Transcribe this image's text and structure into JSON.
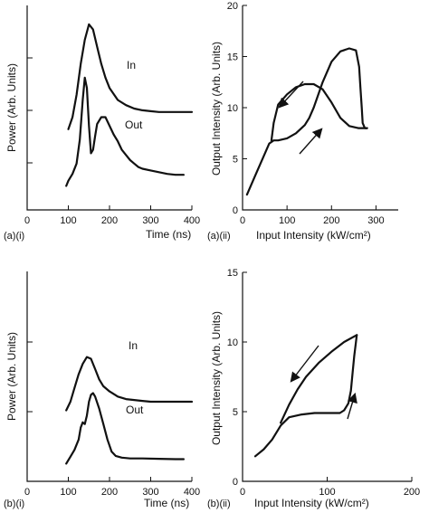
{
  "chart_data": [
    {
      "id": "a_i",
      "type": "line",
      "panel_label": "(a)(i)",
      "xlabel": "Time (ns)",
      "ylabel": "Power (Arb. Units)",
      "xlim": [
        0,
        400
      ],
      "xticks": [
        0,
        100,
        200,
        300,
        400
      ],
      "y_tick_marks": 3,
      "series": [
        {
          "name": "In",
          "x": [
            100,
            110,
            120,
            130,
            140,
            150,
            160,
            170,
            180,
            190,
            200,
            220,
            240,
            260,
            280,
            300,
            320,
            340,
            360,
            380,
            400
          ],
          "values": [
            0.38,
            0.45,
            0.58,
            0.76,
            0.9,
            0.99,
            0.96,
            0.86,
            0.76,
            0.68,
            0.62,
            0.55,
            0.52,
            0.5,
            0.49,
            0.485,
            0.48,
            0.48,
            0.48,
            0.48,
            0.48
          ]
        },
        {
          "name": "Out",
          "x": [
            95,
            100,
            110,
            120,
            128,
            135,
            140,
            145,
            150,
            155,
            160,
            165,
            170,
            180,
            190,
            200,
            210,
            220,
            230,
            240,
            250,
            260,
            270,
            280,
            300,
            320,
            340,
            360,
            380
          ],
          "values": [
            0.05,
            0.08,
            0.12,
            0.18,
            0.32,
            0.55,
            0.68,
            0.62,
            0.4,
            0.24,
            0.26,
            0.34,
            0.41,
            0.45,
            0.45,
            0.4,
            0.35,
            0.31,
            0.26,
            0.23,
            0.2,
            0.18,
            0.16,
            0.15,
            0.14,
            0.13,
            0.12,
            0.115,
            0.115
          ]
        }
      ]
    },
    {
      "id": "a_ii",
      "type": "line",
      "panel_label": "(a)(ii)",
      "xlabel": "Input Intensity (kW/cm²)",
      "ylabel": "Output Intensity (Arb. Units)",
      "xlim": [
        0,
        350
      ],
      "ylim": [
        0,
        20
      ],
      "xticks": [
        0,
        100,
        200,
        300
      ],
      "yticks": [
        0,
        5,
        10,
        15,
        20
      ],
      "series": [
        {
          "name": "",
          "x": [
            10,
            30,
            50,
            60,
            70,
            80,
            100,
            120,
            140,
            150,
            160,
            180,
            200,
            220,
            240,
            255,
            262,
            265,
            268,
            270,
            275,
            280
          ],
          "values": [
            1.5,
            3.5,
            5.5,
            6.5,
            6.8,
            6.8,
            7.0,
            7.5,
            8.3,
            9.0,
            10.0,
            12.5,
            14.5,
            15.5,
            15.8,
            15.6,
            14.0,
            12.0,
            10.0,
            8.5,
            8.0,
            8.0
          ]
        },
        {
          "name": "",
          "x": [
            280,
            260,
            240,
            220,
            200,
            180,
            160,
            140,
            120,
            100,
            80,
            70,
            65
          ],
          "values": [
            8.0,
            8.0,
            8.2,
            9.0,
            10.5,
            11.8,
            12.3,
            12.3,
            12.0,
            11.3,
            10.3,
            8.5,
            6.8
          ]
        }
      ],
      "arrows": [
        "upper path leftward",
        "lower path rightward"
      ]
    },
    {
      "id": "b_i",
      "type": "line",
      "panel_label": "(b)(i)",
      "xlabel": "Time (ns)",
      "ylabel": "Power (Arb. Units)",
      "xlim": [
        0,
        400
      ],
      "xticks": [
        0,
        100,
        200,
        300,
        400
      ],
      "y_tick_marks": 2,
      "series": [
        {
          "name": "In",
          "x": [
            95,
            105,
            115,
            125,
            135,
            145,
            155,
            165,
            175,
            185,
            200,
            220,
            240,
            260,
            280,
            300,
            320,
            340,
            360,
            380,
            400
          ],
          "values": [
            0.35,
            0.4,
            0.48,
            0.56,
            0.62,
            0.66,
            0.65,
            0.59,
            0.53,
            0.49,
            0.46,
            0.43,
            0.415,
            0.41,
            0.405,
            0.4,
            0.4,
            0.4,
            0.4,
            0.4,
            0.4
          ]
        },
        {
          "name": "Out",
          "x": [
            95,
            105,
            115,
            125,
            130,
            135,
            140,
            145,
            150,
            155,
            160,
            165,
            175,
            185,
            195,
            205,
            215,
            230,
            250,
            280,
            320,
            360,
            380
          ],
          "values": [
            0.04,
            0.08,
            0.12,
            0.18,
            0.25,
            0.28,
            0.27,
            0.32,
            0.4,
            0.44,
            0.45,
            0.43,
            0.36,
            0.27,
            0.18,
            0.11,
            0.085,
            0.075,
            0.07,
            0.07,
            0.068,
            0.066,
            0.066
          ]
        }
      ]
    },
    {
      "id": "b_ii",
      "type": "line",
      "panel_label": "(b)(ii)",
      "xlabel": "Input Intensity (kW/cm²)",
      "ylabel": "Output Intensity (Arb. Units)",
      "xlim": [
        0,
        200
      ],
      "ylim": [
        0,
        15
      ],
      "xticks": [
        0,
        100,
        200
      ],
      "yticks": [
        0,
        5,
        10,
        15
      ],
      "series": [
        {
          "name": "",
          "x": [
            15,
            25,
            35,
            45,
            55,
            70,
            85,
            100,
            115,
            120,
            125,
            128,
            130,
            132,
            134,
            135
          ],
          "values": [
            1.8,
            2.3,
            3.0,
            4.0,
            4.6,
            4.8,
            4.9,
            4.9,
            4.9,
            5.1,
            5.6,
            6.5,
            7.8,
            9.0,
            10.0,
            10.5
          ]
        },
        {
          "name": "",
          "x": [
            135,
            120,
            105,
            90,
            75,
            65,
            55,
            45
          ],
          "values": [
            10.5,
            10.0,
            9.3,
            8.5,
            7.5,
            6.6,
            5.5,
            4.2
          ]
        }
      ],
      "arrows": [
        "upper path leftward",
        "lower path rightward"
      ]
    }
  ],
  "series_labels": {
    "a_in": "In",
    "a_out": "Out",
    "b_in": "In",
    "b_out": "Out"
  }
}
